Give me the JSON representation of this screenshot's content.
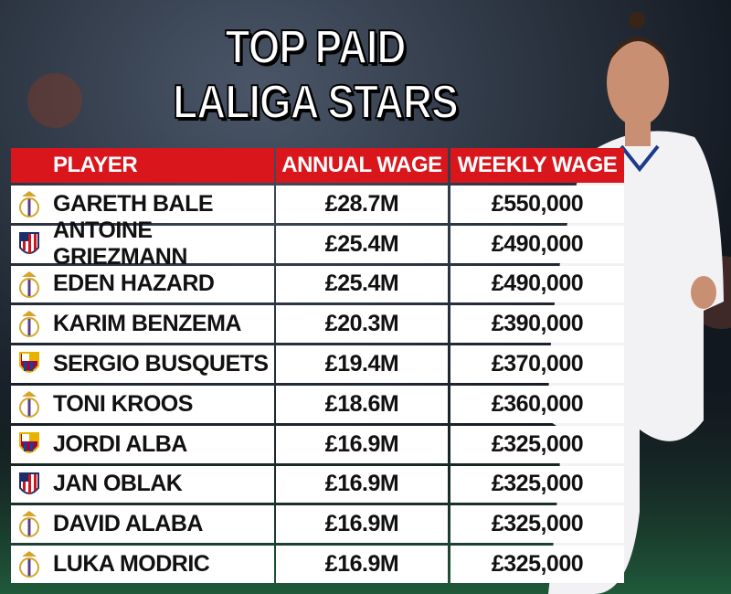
{
  "title": {
    "line1": "TOP PAID",
    "line2": "LALIGA STARS"
  },
  "table": {
    "header": [
      "PLAYER",
      "ANNUAL WAGE",
      "WEEKLY WAGE"
    ],
    "rows": [
      [
        "GARETH BALE",
        "£28.7M",
        "£550,000"
      ],
      [
        "ANTOINE GRIEZMANN",
        "£25.4M",
        "£490,000"
      ],
      [
        "EDEN HAZARD",
        "£25.4M",
        "£490,000"
      ],
      [
        "KARIM BENZEMA",
        "£20.3M",
        "£390,000"
      ],
      [
        "SERGIO BUSQUETS",
        "£19.4M",
        "£370,000"
      ],
      [
        "TONI KROOS",
        "£18.6M",
        "£360,000"
      ],
      [
        "JORDI ALBA",
        "£16.9M",
        "£325,000"
      ],
      [
        "JAN OBLAK",
        "£16.9M",
        "£325,000"
      ],
      [
        "DAVID ALABA",
        "£16.9M",
        "£325,000"
      ],
      [
        "LUKA MODRIC",
        "£16.9M",
        "£325,000"
      ]
    ]
  }
}
